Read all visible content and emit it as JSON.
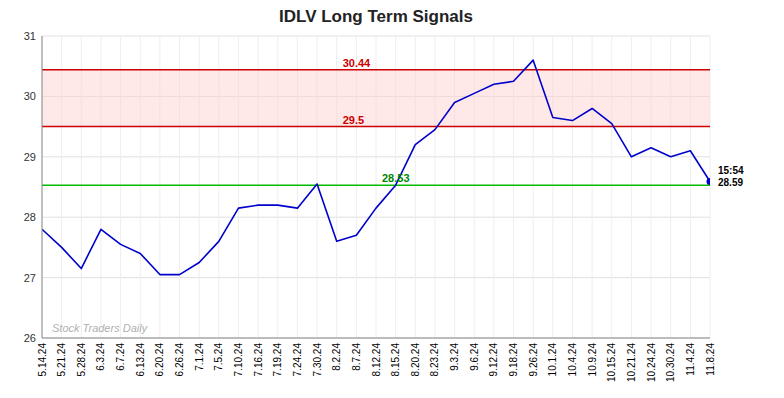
{
  "chart_data": {
    "type": "line",
    "title": "IDLV Long Term Signals",
    "categories": [
      "5.14.24",
      "5.21.24",
      "5.28.24",
      "6.3.24",
      "6.7.24",
      "6.13.24",
      "6.20.24",
      "6.26.24",
      "7.1.24",
      "7.5.24",
      "7.10.24",
      "7.16.24",
      "7.19.24",
      "7.24.24",
      "7.30.24",
      "8.2.24",
      "8.7.24",
      "8.12.24",
      "8.15.24",
      "8.20.24",
      "8.23.24",
      "9.3.24",
      "9.6.24",
      "9.12.24",
      "9.18.24",
      "9.26.24",
      "10.1.24",
      "10.4.24",
      "10.9.24",
      "10.15.24",
      "10.21.24",
      "10.24.24",
      "10.30.24",
      "11.4.24",
      "11.8.24"
    ],
    "values": [
      27.8,
      27.5,
      27.15,
      27.8,
      27.55,
      27.4,
      27.05,
      27.05,
      27.25,
      27.6,
      28.15,
      28.2,
      28.2,
      28.15,
      28.55,
      27.6,
      27.7,
      28.15,
      28.53,
      29.2,
      29.45,
      29.9,
      30.05,
      30.2,
      30.25,
      30.6,
      29.65,
      29.6,
      29.8,
      29.55,
      29.0,
      29.15,
      29.0,
      29.1,
      28.59
    ],
    "color": "#0000cc",
    "ylim": [
      26,
      31
    ],
    "yticks": [
      26,
      27,
      28,
      29,
      30,
      31
    ],
    "grid": true,
    "reference_lines": [
      {
        "value": 30.44,
        "label": "30.44",
        "color": "#cc0000",
        "label_color": "#cc0000"
      },
      {
        "value": 29.5,
        "label": "29.5",
        "color": "#cc0000",
        "label_color": "#cc0000"
      },
      {
        "value": 28.53,
        "label": "28.53",
        "color": "#00bb00",
        "label_color": "#008800"
      }
    ],
    "band": [
      29.5,
      30.44
    ],
    "band_color": "#ffcccc",
    "last_point": {
      "color": "#0000cc",
      "marker": "circle",
      "label": "15:54\n28.59"
    },
    "watermark": "Stock Traders Daily",
    "watermark_color": "#b0b0b0"
  }
}
